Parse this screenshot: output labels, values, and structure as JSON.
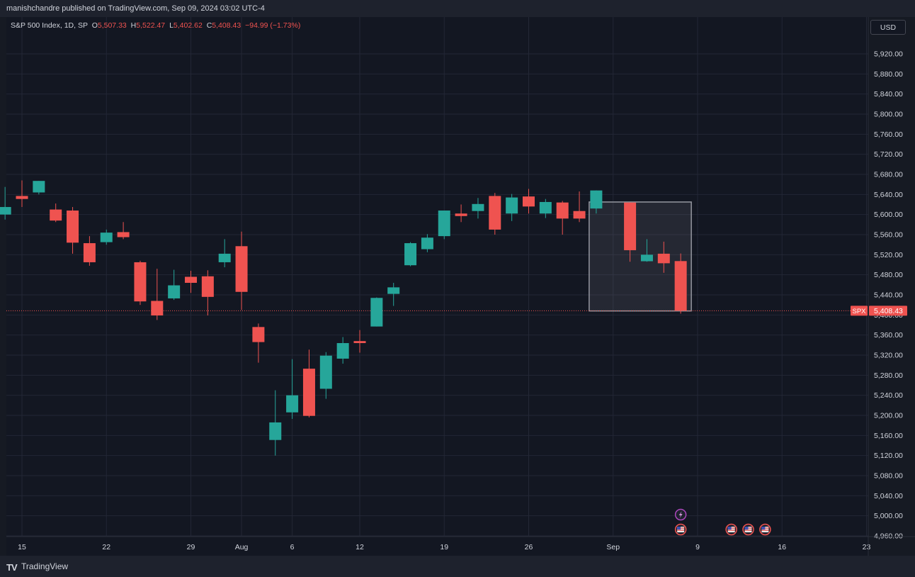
{
  "header": {
    "published_text": "manishchandre published on TradingView.com, Sep 09, 2024 03:02 UTC-4"
  },
  "legend": {
    "symbol_text": "S&P 500 Index, 1D, SP",
    "open_label": "O",
    "open_value": "5,507.33",
    "high_label": "H",
    "high_value": "5,522.47",
    "low_label": "L",
    "low_value": "5,402.62",
    "close_label": "C",
    "close_value": "5,408.43",
    "change_value": "−94.99 (−1.73%)"
  },
  "currency_button": "USD",
  "price_badge": {
    "symbol": "SPX",
    "value": "5,408.43"
  },
  "footer": {
    "logo": "TV",
    "brand": "TradingView"
  },
  "colors": {
    "up": "#26a69a",
    "down": "#ef5350",
    "background": "#161a23",
    "grid": "#232735",
    "text": "#d1d4dc"
  },
  "chart_data": {
    "type": "candlestick",
    "y_ticks": [
      "5,920.00",
      "5,880.00",
      "5,840.00",
      "5,800.00",
      "5,760.00",
      "5,720.00",
      "5,680.00",
      "5,640.00",
      "5,600.00",
      "5,560.00",
      "5,520.00",
      "5,480.00",
      "5,440.00",
      "5,400.00",
      "5,360.00",
      "5,320.00",
      "5,280.00",
      "5,240.00",
      "5,200.00",
      "5,160.00",
      "5,120.00",
      "5,080.00",
      "5,040.00",
      "5,000.00",
      "4,960.00"
    ],
    "y_range": [
      4950,
      5960
    ],
    "x_ticks": [
      {
        "label": "15",
        "date": "2024-07-15"
      },
      {
        "label": "22",
        "date": "2024-07-22"
      },
      {
        "label": "29",
        "date": "2024-07-29"
      },
      {
        "label": "Aug",
        "date": "2024-08-01"
      },
      {
        "label": "6",
        "date": "2024-08-06"
      },
      {
        "label": "12",
        "date": "2024-08-12"
      },
      {
        "label": "19",
        "date": "2024-08-19"
      },
      {
        "label": "26",
        "date": "2024-08-26"
      },
      {
        "label": "Sep",
        "date": "2024-09-02"
      },
      {
        "label": "9",
        "date": "2024-09-09"
      },
      {
        "label": "16",
        "date": "2024-09-16"
      },
      {
        "label": "23",
        "date": "2024-09-23"
      }
    ],
    "last_price": 5408.43,
    "highlight_box": {
      "start": "2024-08-30",
      "end": "2024-09-06",
      "top": 5625,
      "bottom": 5408
    },
    "candles": [
      {
        "date": "2024-07-12",
        "o": 5600,
        "h": 5655,
        "l": 5590,
        "c": 5615
      },
      {
        "date": "2024-07-15",
        "o": 5637,
        "h": 5668,
        "l": 5615,
        "c": 5631
      },
      {
        "date": "2024-07-16",
        "o": 5644,
        "h": 5667,
        "l": 5640,
        "c": 5667
      },
      {
        "date": "2024-07-17",
        "o": 5610,
        "h": 5622,
        "l": 5585,
        "c": 5588
      },
      {
        "date": "2024-07-18",
        "o": 5608,
        "h": 5615,
        "l": 5522,
        "c": 5544
      },
      {
        "date": "2024-07-19",
        "o": 5543,
        "h": 5557,
        "l": 5498,
        "c": 5505
      },
      {
        "date": "2024-07-22",
        "o": 5545,
        "h": 5570,
        "l": 5540,
        "c": 5564
      },
      {
        "date": "2024-07-23",
        "o": 5565,
        "h": 5585,
        "l": 5551,
        "c": 5555
      },
      {
        "date": "2024-07-24",
        "o": 5505,
        "h": 5508,
        "l": 5420,
        "c": 5427
      },
      {
        "date": "2024-07-25",
        "o": 5428,
        "h": 5492,
        "l": 5390,
        "c": 5399
      },
      {
        "date": "2024-07-26",
        "o": 5433,
        "h": 5490,
        "l": 5430,
        "c": 5459
      },
      {
        "date": "2024-07-29",
        "o": 5476,
        "h": 5488,
        "l": 5444,
        "c": 5464
      },
      {
        "date": "2024-07-30",
        "o": 5477,
        "h": 5489,
        "l": 5399,
        "c": 5436
      },
      {
        "date": "2024-07-31",
        "o": 5505,
        "h": 5551,
        "l": 5495,
        "c": 5522
      },
      {
        "date": "2024-08-01",
        "o": 5537,
        "h": 5566,
        "l": 5410,
        "c": 5446
      },
      {
        "date": "2024-08-02",
        "o": 5376,
        "h": 5383,
        "l": 5305,
        "c": 5346
      },
      {
        "date": "2024-08-05",
        "o": 5151,
        "h": 5250,
        "l": 5120,
        "c": 5186
      },
      {
        "date": "2024-08-06",
        "o": 5206,
        "h": 5312,
        "l": 5193,
        "c": 5240
      },
      {
        "date": "2024-08-07",
        "o": 5293,
        "h": 5331,
        "l": 5196,
        "c": 5199
      },
      {
        "date": "2024-08-08",
        "o": 5253,
        "h": 5326,
        "l": 5233,
        "c": 5319
      },
      {
        "date": "2024-08-09",
        "o": 5313,
        "h": 5356,
        "l": 5303,
        "c": 5344
      },
      {
        "date": "2024-08-12",
        "o": 5348,
        "h": 5370,
        "l": 5325,
        "c": 5344
      },
      {
        "date": "2024-08-13",
        "o": 5377,
        "h": 5435,
        "l": 5377,
        "c": 5434
      },
      {
        "date": "2024-08-14",
        "o": 5442,
        "h": 5464,
        "l": 5418,
        "c": 5455
      },
      {
        "date": "2024-08-15",
        "o": 5499,
        "h": 5545,
        "l": 5497,
        "c": 5543
      },
      {
        "date": "2024-08-16",
        "o": 5531,
        "h": 5561,
        "l": 5525,
        "c": 5554
      },
      {
        "date": "2024-08-19",
        "o": 5557,
        "h": 5608,
        "l": 5551,
        "c": 5608
      },
      {
        "date": "2024-08-20",
        "o": 5602,
        "h": 5620,
        "l": 5585,
        "c": 5597
      },
      {
        "date": "2024-08-21",
        "o": 5607,
        "h": 5633,
        "l": 5592,
        "c": 5621
      },
      {
        "date": "2024-08-22",
        "o": 5637,
        "h": 5643,
        "l": 5560,
        "c": 5570
      },
      {
        "date": "2024-08-23",
        "o": 5602,
        "h": 5641,
        "l": 5587,
        "c": 5634
      },
      {
        "date": "2024-08-26",
        "o": 5636,
        "h": 5651,
        "l": 5602,
        "c": 5616
      },
      {
        "date": "2024-08-27",
        "o": 5602,
        "h": 5631,
        "l": 5593,
        "c": 5625
      },
      {
        "date": "2024-08-28",
        "o": 5624,
        "h": 5627,
        "l": 5560,
        "c": 5592
      },
      {
        "date": "2024-08-29",
        "o": 5607,
        "h": 5646,
        "l": 5585,
        "c": 5592
      },
      {
        "date": "2024-08-30",
        "o": 5612,
        "h": 5648,
        "l": 5602,
        "c": 5648
      },
      {
        "date": "2024-09-03",
        "o": 5624,
        "h": 5624,
        "l": 5506,
        "c": 5529
      },
      {
        "date": "2024-09-04",
        "o": 5507,
        "h": 5551,
        "l": 5506,
        "c": 5520
      },
      {
        "date": "2024-09-05",
        "o": 5522,
        "h": 5546,
        "l": 5484,
        "c": 5503
      },
      {
        "date": "2024-09-06",
        "o": 5507.33,
        "h": 5522.47,
        "l": 5402.62,
        "c": 5408.43
      }
    ],
    "events": [
      {
        "date": "2024-09-06",
        "icons": [
          "lightning-icon",
          "us-flag-icon"
        ]
      },
      {
        "date": "2024-09-11",
        "icons": [
          "us-flag-icon"
        ]
      },
      {
        "date": "2024-09-12",
        "icons": [
          "us-flag-icon"
        ]
      },
      {
        "date": "2024-09-13",
        "icons": [
          "us-flag-icon"
        ]
      }
    ]
  }
}
